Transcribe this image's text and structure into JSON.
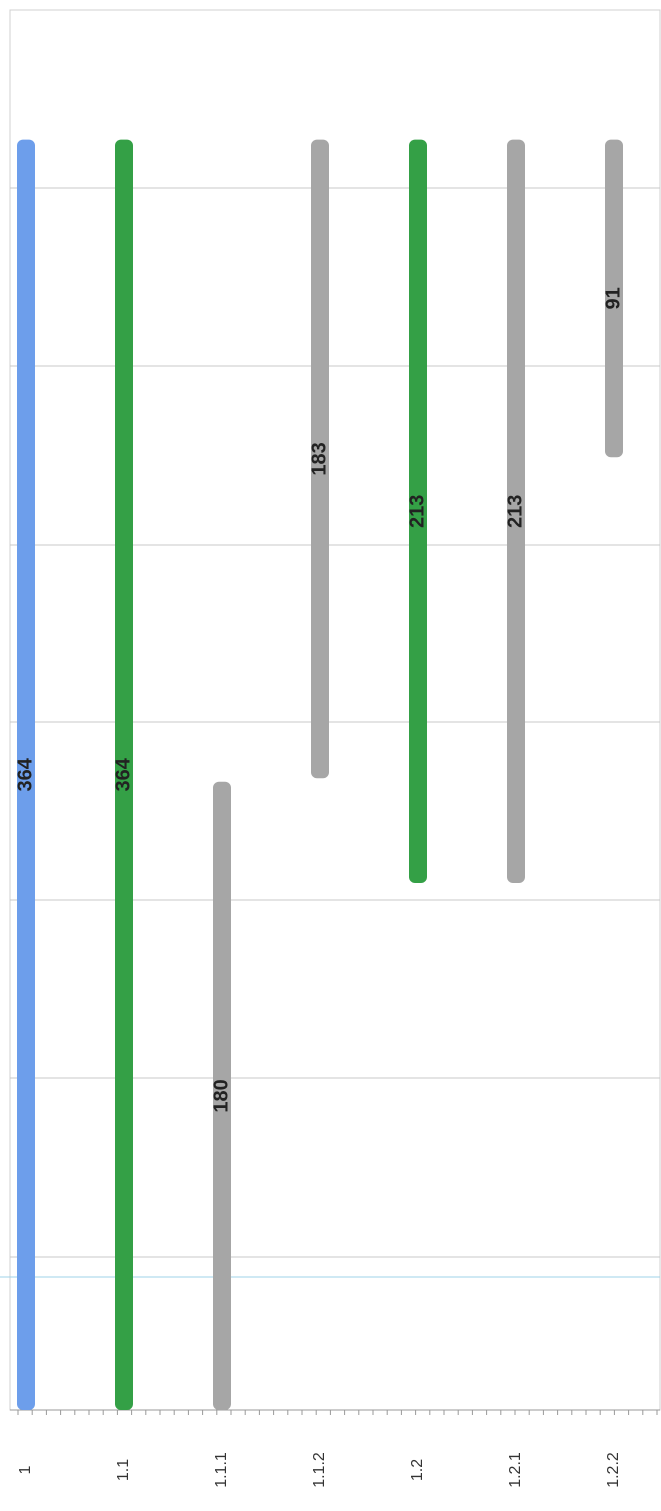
{
  "chart_data": {
    "type": "gantt",
    "categories": [
      "1",
      "1.1",
      "1.1.1",
      "1.1.2",
      "1.2",
      "1.2.1",
      "1.2.2"
    ],
    "starts": [
      0,
      0,
      0,
      181,
      151,
      151,
      273
    ],
    "values": [
      364,
      364,
      180,
      183,
      213,
      213,
      91
    ],
    "colors": [
      "#6d9eeb",
      "#34a046",
      "#a6a6a6",
      "#a6a6a6",
      "#34a046",
      "#a6a6a6",
      "#a6a6a6"
    ],
    "ylim": [
      0,
      400
    ]
  }
}
